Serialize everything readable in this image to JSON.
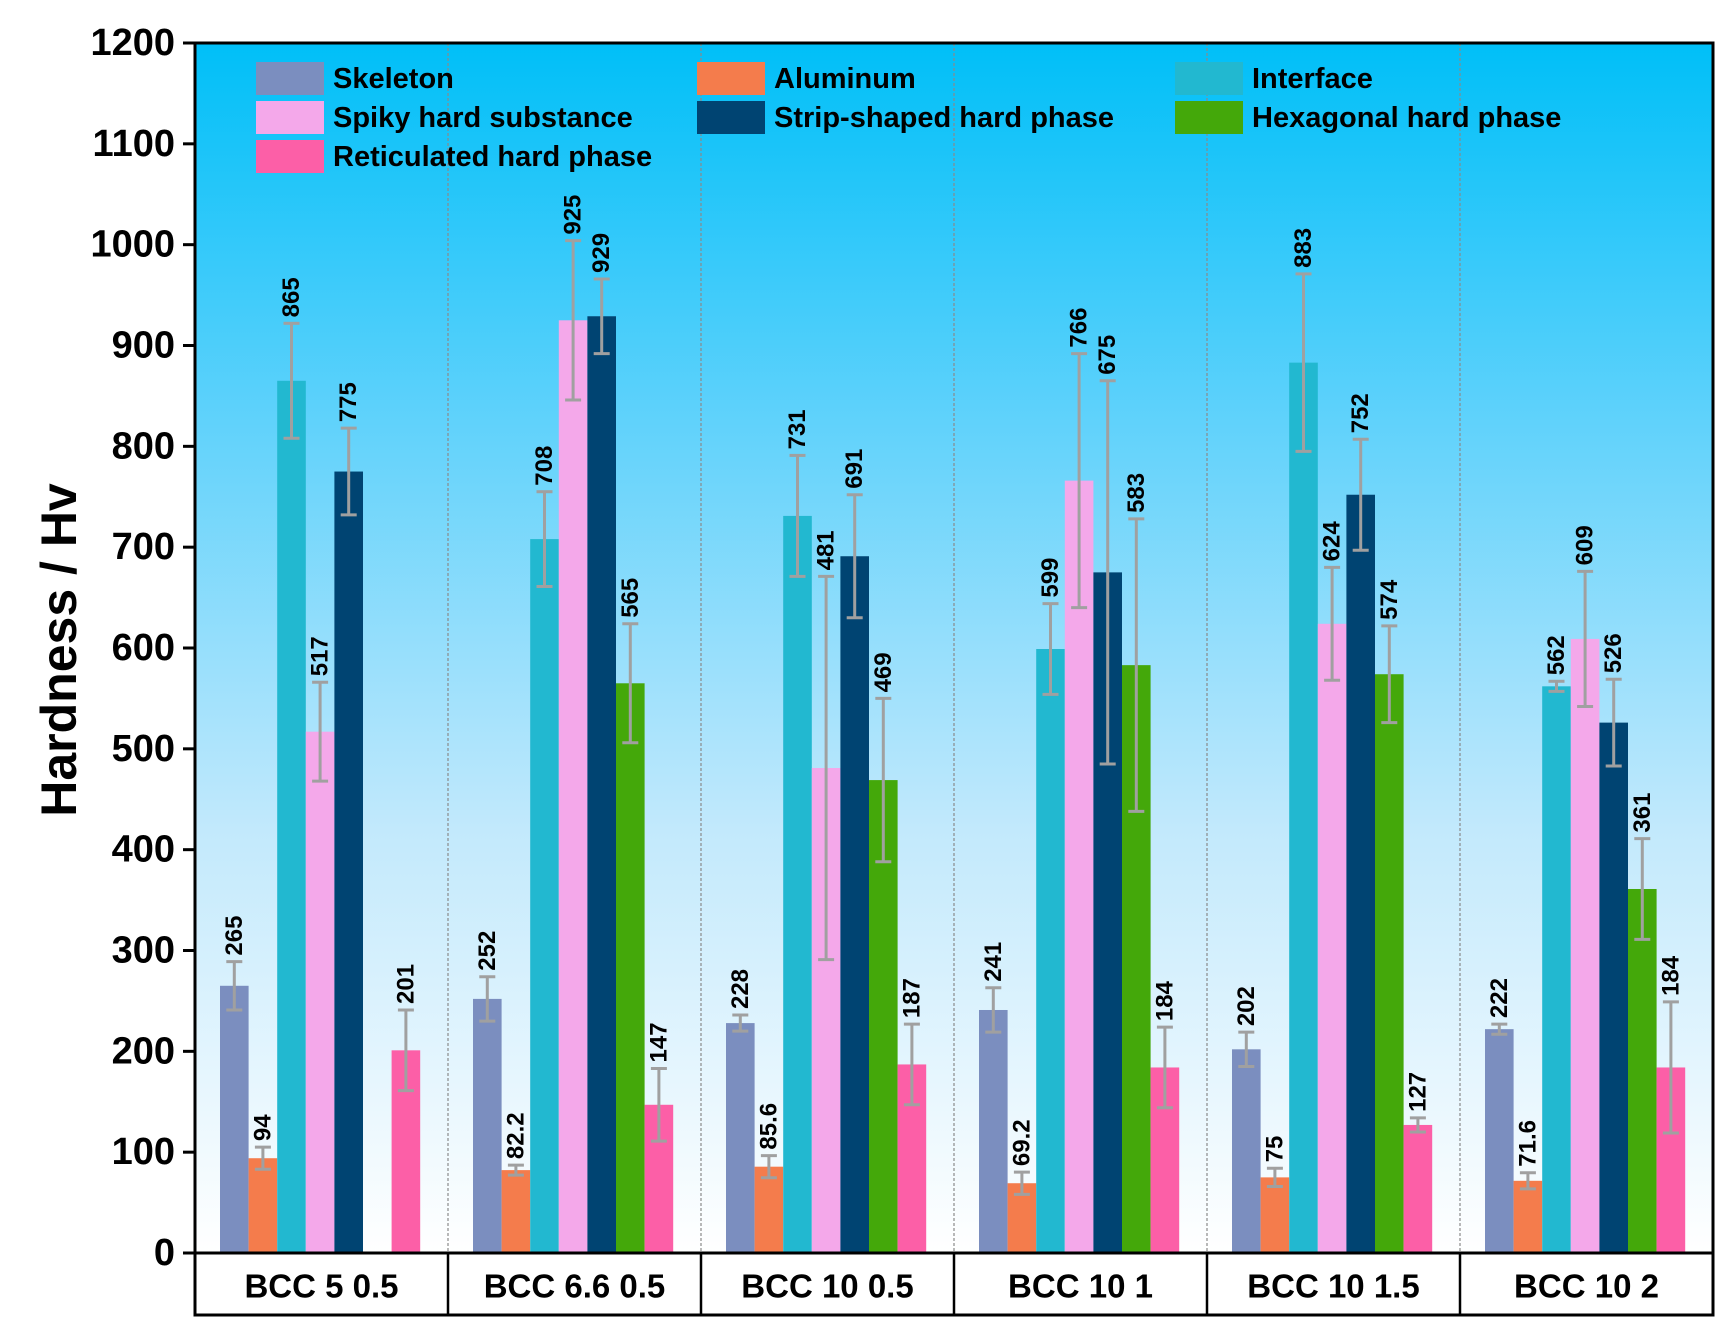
{
  "chart_data": {
    "type": "bar",
    "title": "",
    "xlabel": "",
    "ylabel": "Hardness / Hv",
    "ylim": [
      0,
      1200
    ],
    "yticks": [
      0,
      100,
      200,
      300,
      400,
      500,
      600,
      700,
      800,
      900,
      1000,
      1100,
      1200
    ],
    "categories": [
      "BCC 5 0.5",
      "BCC 6.6 0.5",
      "BCC 10 0.5",
      "BCC 10 1",
      "BCC 10 1.5",
      "BCC 10 2"
    ],
    "legend_position": "top",
    "background": "gradient sky-blue top to white bottom",
    "series": [
      {
        "name": "Skeleton",
        "color": "#7b8ebf",
        "values": [
          265,
          252,
          228,
          241,
          202,
          222
        ],
        "labels": [
          "265",
          "252",
          "228",
          "241",
          "202",
          "222"
        ],
        "errors": [
          24,
          22,
          8,
          22,
          17,
          5
        ]
      },
      {
        "name": "Aluminum",
        "color": "#f47c4c",
        "values": [
          94,
          82.2,
          85.6,
          69.2,
          75,
          71.6
        ],
        "labels": [
          "94",
          "82.2",
          "85.6",
          "69.2",
          "75",
          "71.6"
        ],
        "errors": [
          11,
          5,
          11,
          11,
          9,
          8
        ]
      },
      {
        "name": "Interface",
        "color": "#22b8d0",
        "values": [
          865,
          708,
          731,
          599,
          883,
          562
        ],
        "labels": [
          "865",
          "708",
          "731",
          "599",
          "883",
          "562"
        ],
        "errors": [
          57,
          47,
          60,
          45,
          88,
          5
        ]
      },
      {
        "name": "Spiky hard substance",
        "color": "#f4a8ea",
        "values": [
          517,
          925,
          481,
          766,
          624,
          609
        ],
        "labels": [
          "517",
          "925",
          "481",
          "766",
          "624",
          "609"
        ],
        "errors": [
          49,
          79,
          190,
          126,
          56,
          67
        ]
      },
      {
        "name": "Strip-shaped hard phase",
        "color": "#004472",
        "values": [
          775,
          929,
          691,
          675,
          752,
          526
        ],
        "labels": [
          "775",
          "929",
          "691",
          "675",
          "752",
          "526"
        ],
        "errors": [
          43,
          37,
          61,
          190,
          55,
          43
        ]
      },
      {
        "name": "Hexagonal hard phase",
        "color": "#44a80a",
        "values": [
          null,
          565,
          469,
          583,
          574,
          361
        ],
        "labels": [
          "",
          "565",
          "469",
          "583",
          "574",
          "361"
        ],
        "errors": [
          0,
          59,
          81,
          145,
          48,
          50
        ]
      },
      {
        "name": "Reticulated hard phase",
        "color": "#fc5fa7",
        "values": [
          201,
          147,
          187,
          184,
          127,
          184
        ],
        "labels": [
          "201",
          "147",
          "187",
          "184",
          "127",
          "184"
        ],
        "errors": [
          40,
          36,
          40,
          40,
          7,
          65
        ]
      }
    ]
  }
}
